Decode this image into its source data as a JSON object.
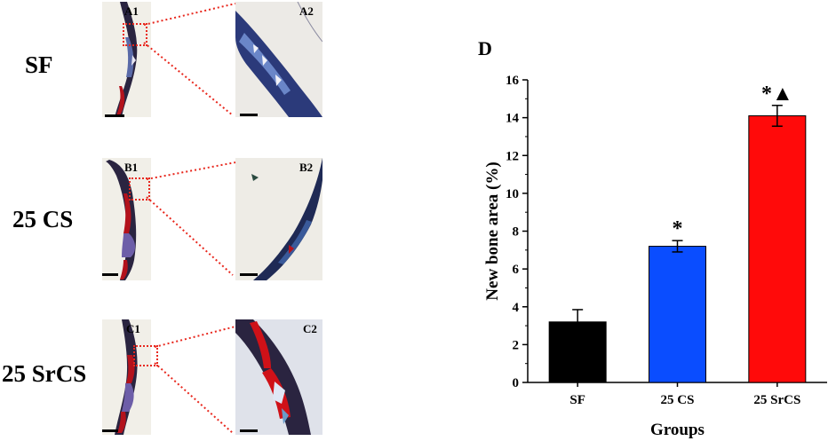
{
  "figure": {
    "rows": [
      {
        "label": "SF",
        "left_panel": "A1",
        "right_panel": "A2"
      },
      {
        "label": "25 CS",
        "left_panel": "B1",
        "right_panel": "B2"
      },
      {
        "label": "25 SrCS",
        "left_panel": "C1",
        "right_panel": "C2"
      }
    ],
    "panel_d_label": "D",
    "colors": {
      "zoom_box": "#e8281e",
      "sf_bar": "#000000",
      "cs_bar": "#0a4dff",
      "srcs_bar": "#ff0a0a"
    }
  },
  "chart_data": {
    "type": "bar",
    "categories": [
      "SF",
      "25 CS",
      "25 SrCS"
    ],
    "values": [
      3.2,
      7.2,
      14.1
    ],
    "errors": [
      0.65,
      0.3,
      0.55
    ],
    "annotations": [
      "",
      "*",
      "*▲"
    ],
    "colors": [
      "#000000",
      "#0a4dff",
      "#ff0a0a"
    ],
    "xlabel": "Groups",
    "ylabel": "New bone area (%)",
    "ylim": [
      0,
      16
    ],
    "yticks": [
      0,
      2,
      4,
      6,
      8,
      10,
      12,
      14,
      16
    ],
    "grid": false
  }
}
